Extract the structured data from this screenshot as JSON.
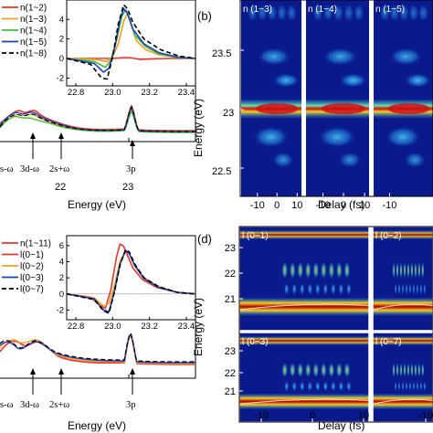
{
  "chart_data": [
    {
      "id": "a",
      "type": "line",
      "xlabel": "Energy (eV)",
      "xticks": [
        "22",
        "23"
      ],
      "annotations": [
        "s-ω",
        "3d-ω",
        "2s+ω",
        "3p"
      ],
      "legend": [
        "n(1~2)",
        "n(1~3)",
        "n(1~4)",
        "n(1~5)",
        "n(1~8)"
      ],
      "inset": {
        "xlim": [
          22.75,
          23.45
        ],
        "ylim": [
          -2.8,
          5.8
        ],
        "xticks": [
          "22.8",
          "23.0",
          "23.2",
          "23.4"
        ],
        "yticks": [
          "-2",
          "0",
          "2",
          "4"
        ],
        "series": [
          {
            "name": "n(1~2)",
            "color": "#e8362a",
            "dash": "",
            "x": [
              22.75,
              22.9,
              23.0,
              23.03,
              23.06,
              23.09,
              23.12,
              23.15,
              23.2,
              23.3,
              23.45
            ],
            "y": [
              0,
              0,
              0,
              0.05,
              0.1,
              0.1,
              0,
              -0.1,
              -0.05,
              0,
              0
            ]
          },
          {
            "name": "n(1~3)",
            "color": "#f0a020",
            "dash": "",
            "x": [
              22.75,
              22.9,
              22.97,
              23.0,
              23.03,
              23.06,
              23.08,
              23.1,
              23.13,
              23.18,
              23.25,
              23.35,
              23.45
            ],
            "y": [
              0,
              -0.1,
              -0.3,
              0.2,
              1.5,
              3.8,
              4.6,
              3.5,
              1.8,
              0.9,
              0.4,
              0.1,
              0
            ]
          },
          {
            "name": "n(1~4)",
            "color": "#3fbf3f",
            "dash": "",
            "x": [
              22.75,
              22.9,
              22.96,
              22.99,
              23.02,
              23.05,
              23.07,
              23.09,
              23.12,
              23.18,
              23.25,
              23.35,
              23.45
            ],
            "y": [
              0,
              -0.3,
              -0.9,
              -0.2,
              1.8,
              4.3,
              5.0,
              4.2,
              2.4,
              1.2,
              0.5,
              0.1,
              0
            ]
          },
          {
            "name": "n(1~5)",
            "color": "#1f3fbf",
            "dash": "",
            "x": [
              22.75,
              22.9,
              22.95,
              22.98,
              23.01,
              23.04,
              23.06,
              23.08,
              23.11,
              23.17,
              23.25,
              23.35,
              23.45
            ],
            "y": [
              0,
              -0.5,
              -1.4,
              -1.0,
              1.0,
              4.0,
              5.1,
              4.6,
              3.0,
              1.5,
              0.6,
              0.15,
              0
            ]
          },
          {
            "name": "n(1~8)",
            "color": "#000000",
            "dash": "5,3",
            "x": [
              22.75,
              22.88,
              22.94,
              22.97,
              23.0,
              23.03,
              23.06,
              23.08,
              23.11,
              23.17,
              23.26,
              23.36,
              23.45
            ],
            "y": [
              0,
              -0.6,
              -2.0,
              -2.1,
              0.2,
              3.5,
              5.5,
              5.1,
              3.7,
              2.0,
              0.9,
              0.25,
              0
            ]
          }
        ]
      }
    },
    {
      "id": "b",
      "type": "heatmap",
      "xlabel": "Delay (fs)",
      "ylabel": "Energy (eV)",
      "xticks": [
        "-10",
        "0",
        "10"
      ],
      "yticks": [
        "23.5",
        "23",
        "22.5"
      ],
      "ylim": [
        22.4,
        23.9
      ],
      "panels": [
        "n (1~3)",
        "n (1~4)",
        "n (1~5)"
      ]
    },
    {
      "id": "c",
      "type": "line",
      "xlabel": "Energy (eV)",
      "xticks": [
        "22",
        "23"
      ],
      "annotations": [
        "s-ω",
        "3d-ω",
        "2s+ω",
        "3p"
      ],
      "legend": [
        "n(1~11)",
        "l(0~1)",
        "l(0~2)",
        "l(0~3)",
        "l(0~7)"
      ],
      "inset": {
        "xlim": [
          22.75,
          23.45
        ],
        "ylim": [
          -3.2,
          7.0
        ],
        "xticks": [
          "22.8",
          "23.0",
          "23.2",
          "23.4"
        ],
        "yticks": [
          "-2",
          "0",
          "2",
          "4",
          "6"
        ],
        "series": [
          {
            "name": "l(0~1)",
            "color": "#e8362a",
            "dash": "",
            "x": [
              22.75,
              22.88,
              22.93,
              22.96,
              22.99,
              23.02,
              23.04,
              23.06,
              23.08,
              23.11,
              23.16,
              23.24,
              23.35,
              23.45
            ],
            "y": [
              0,
              -0.4,
              -1.4,
              -1.8,
              0.5,
              4.5,
              6.2,
              5.9,
              4.8,
              3.2,
              1.8,
              0.8,
              0.2,
              0
            ]
          },
          {
            "name": "l(0~2)",
            "color": "#f0a020",
            "dash": "",
            "x": [
              22.75,
              22.9,
              22.95,
              22.98,
              23.01,
              23.04,
              23.07,
              23.09,
              23.12,
              23.17,
              23.25,
              23.35,
              23.45
            ],
            "y": [
              0,
              -0.5,
              -1.5,
              -1.2,
              1.0,
              4.1,
              5.3,
              5.0,
              3.6,
              2.0,
              0.9,
              0.2,
              0
            ]
          },
          {
            "name": "l(0~3)",
            "color": "#1f3fbf",
            "dash": "",
            "x": [
              22.75,
              22.9,
              22.95,
              22.98,
              23.01,
              23.04,
              23.07,
              23.09,
              23.12,
              23.17,
              23.25,
              23.35,
              23.45
            ],
            "y": [
              0,
              -0.6,
              -2.0,
              -2.2,
              0.4,
              3.7,
              5.4,
              5.0,
              3.5,
              1.9,
              0.8,
              0.2,
              0
            ]
          },
          {
            "name": "l(0~7)",
            "color": "#000000",
            "dash": "5,3",
            "x": [
              22.75,
              22.9,
              22.95,
              22.98,
              23.01,
              23.04,
              23.07,
              23.09,
              23.12,
              23.17,
              23.25,
              23.35,
              23.45
            ],
            "y": [
              0,
              -0.7,
              -2.1,
              -2.4,
              0.3,
              3.6,
              5.5,
              5.2,
              3.7,
              2.0,
              0.9,
              0.2,
              0
            ]
          }
        ]
      }
    },
    {
      "id": "d",
      "type": "heatmap",
      "xlabel": "Delay (fs)",
      "ylabel": "Energy (eV)",
      "xticks": [
        "-10",
        "0",
        "10"
      ],
      "yticks": [
        "23",
        "22",
        "21"
      ],
      "panels": [
        "l (0~1)",
        "l (0~2)",
        "l (0~3)",
        "l (0~7)"
      ]
    }
  ],
  "figure": {
    "panel_b": "(b)",
    "panel_d": "(d)"
  },
  "colors": {
    "map_bg": "#0a1a8c",
    "map_mid": "#1da1e0",
    "map_peak": "#c8101a"
  }
}
